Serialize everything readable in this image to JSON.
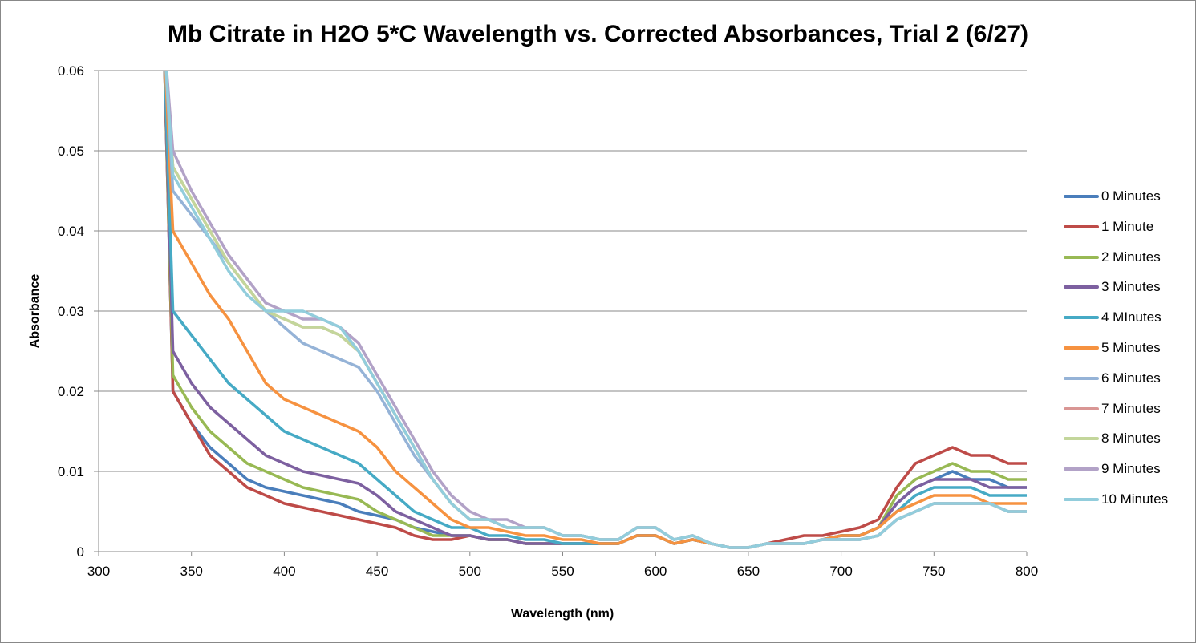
{
  "chart_data": {
    "type": "line",
    "title": "Mb Citrate in H2O 5*C Wavelength vs. Corrected Absorbances, Trial 2 (6/27)",
    "xlabel": "Wavelength (nm)",
    "ylabel": "Absorbance",
    "xlim": [
      300,
      800
    ],
    "ylim": [
      0,
      0.06
    ],
    "xticks": [
      "300",
      "350",
      "400",
      "450",
      "500",
      "550",
      "600",
      "650",
      "700",
      "750",
      "800"
    ],
    "yticks": [
      "0",
      "0.01",
      "0.02",
      "0.03",
      "0.04",
      "0.05",
      "0.06"
    ],
    "grid": "horizontal",
    "legend": "right",
    "x": [
      335,
      340,
      350,
      360,
      370,
      380,
      390,
      400,
      410,
      420,
      430,
      440,
      450,
      460,
      470,
      480,
      490,
      500,
      510,
      520,
      530,
      540,
      550,
      560,
      570,
      580,
      590,
      600,
      610,
      620,
      630,
      640,
      650,
      660,
      670,
      680,
      690,
      700,
      710,
      720,
      730,
      740,
      750,
      760,
      770,
      780,
      790,
      800
    ],
    "series": [
      {
        "name": "0 Minutes",
        "color": "#4A7EBB",
        "values": [
          0.065,
          0.02,
          0.016,
          0.013,
          0.011,
          0.009,
          0.008,
          0.0075,
          0.007,
          0.0065,
          0.006,
          0.005,
          0.0045,
          0.004,
          0.003,
          0.0025,
          0.002,
          0.002,
          0.0015,
          0.0015,
          0.001,
          0.001,
          0.001,
          0.001,
          0.001,
          0.001,
          0.002,
          0.002,
          0.001,
          0.0015,
          0.001,
          0.0005,
          0.0005,
          0.001,
          0.001,
          0.001,
          0.0015,
          0.002,
          0.002,
          0.003,
          0.006,
          0.008,
          0.009,
          0.01,
          0.009,
          0.009,
          0.008,
          0.008
        ]
      },
      {
        "name": "1 Minute",
        "color": "#BE4B48",
        "values": [
          0.065,
          0.02,
          0.016,
          0.012,
          0.01,
          0.008,
          0.007,
          0.006,
          0.0055,
          0.005,
          0.0045,
          0.004,
          0.0035,
          0.003,
          0.002,
          0.0015,
          0.0015,
          0.002,
          0.0015,
          0.0015,
          0.001,
          0.001,
          0.001,
          0.001,
          0.001,
          0.001,
          0.002,
          0.002,
          0.001,
          0.0015,
          0.001,
          0.0005,
          0.0005,
          0.001,
          0.0015,
          0.002,
          0.002,
          0.0025,
          0.003,
          0.004,
          0.008,
          0.011,
          0.012,
          0.013,
          0.012,
          0.012,
          0.011,
          0.011
        ]
      },
      {
        "name": "2 Minutes",
        "color": "#98B954",
        "values": [
          0.065,
          0.022,
          0.018,
          0.015,
          0.013,
          0.011,
          0.01,
          0.009,
          0.008,
          0.0075,
          0.007,
          0.0065,
          0.005,
          0.004,
          0.003,
          0.002,
          0.002,
          0.002,
          0.0015,
          0.0015,
          0.001,
          0.001,
          0.001,
          0.001,
          0.001,
          0.001,
          0.002,
          0.002,
          0.001,
          0.0015,
          0.001,
          0.0005,
          0.0005,
          0.001,
          0.001,
          0.001,
          0.0015,
          0.002,
          0.002,
          0.003,
          0.007,
          0.009,
          0.01,
          0.011,
          0.01,
          0.01,
          0.009,
          0.009
        ]
      },
      {
        "name": "3 Minutes",
        "color": "#7D60A0",
        "values": [
          0.065,
          0.025,
          0.021,
          0.018,
          0.016,
          0.014,
          0.012,
          0.011,
          0.01,
          0.0095,
          0.009,
          0.0085,
          0.007,
          0.005,
          0.004,
          0.003,
          0.002,
          0.002,
          0.0015,
          0.0015,
          0.001,
          0.001,
          0.001,
          0.001,
          0.001,
          0.001,
          0.002,
          0.002,
          0.001,
          0.0015,
          0.001,
          0.0005,
          0.0005,
          0.001,
          0.001,
          0.001,
          0.0015,
          0.002,
          0.002,
          0.003,
          0.006,
          0.008,
          0.009,
          0.009,
          0.009,
          0.008,
          0.008,
          0.008
        ]
      },
      {
        "name": "4 MInutes",
        "color": "#46AAC5",
        "values": [
          0.065,
          0.03,
          0.027,
          0.024,
          0.021,
          0.019,
          0.017,
          0.015,
          0.014,
          0.013,
          0.012,
          0.011,
          0.009,
          0.007,
          0.005,
          0.004,
          0.003,
          0.003,
          0.002,
          0.002,
          0.0015,
          0.0015,
          0.001,
          0.001,
          0.001,
          0.001,
          0.002,
          0.002,
          0.001,
          0.0015,
          0.001,
          0.0005,
          0.0005,
          0.001,
          0.001,
          0.001,
          0.0015,
          0.002,
          0.002,
          0.003,
          0.005,
          0.007,
          0.008,
          0.008,
          0.008,
          0.007,
          0.007,
          0.007
        ]
      },
      {
        "name": "5 Minutes",
        "color": "#F69240",
        "values": [
          0.065,
          0.04,
          0.036,
          0.032,
          0.029,
          0.025,
          0.021,
          0.019,
          0.018,
          0.017,
          0.016,
          0.015,
          0.013,
          0.01,
          0.008,
          0.006,
          0.004,
          0.003,
          0.003,
          0.0025,
          0.002,
          0.002,
          0.0015,
          0.0015,
          0.001,
          0.001,
          0.002,
          0.002,
          0.001,
          0.0015,
          0.001,
          0.0005,
          0.0005,
          0.001,
          0.001,
          0.001,
          0.0015,
          0.002,
          0.002,
          0.003,
          0.005,
          0.006,
          0.007,
          0.007,
          0.007,
          0.006,
          0.006,
          0.006
        ]
      },
      {
        "name": "6 Minutes",
        "color": "#95B3D7",
        "values": [
          0.065,
          0.045,
          0.042,
          0.039,
          0.036,
          0.033,
          0.03,
          0.028,
          0.026,
          0.025,
          0.024,
          0.023,
          0.02,
          0.016,
          0.012,
          0.009,
          0.006,
          0.004,
          0.004,
          0.003,
          0.003,
          0.003,
          0.002,
          0.002,
          0.0015,
          0.0015,
          0.003,
          0.003,
          0.0015,
          0.002,
          0.001,
          0.0005,
          0.0005,
          0.001,
          0.001,
          0.001,
          0.0015,
          0.0015,
          0.0015,
          0.002,
          0.004,
          0.005,
          0.006,
          0.006,
          0.006,
          0.006,
          0.005,
          0.005
        ]
      },
      {
        "name": "7 Minutes",
        "color": "#D99694",
        "values": [
          0.065,
          0.048,
          0.044,
          0.04,
          0.036,
          0.033,
          0.03,
          0.029,
          0.028,
          0.028,
          0.027,
          0.025,
          0.021,
          0.017,
          0.013,
          0.009,
          0.006,
          0.004,
          0.004,
          0.003,
          0.003,
          0.003,
          0.002,
          0.002,
          0.0015,
          0.0015,
          0.003,
          0.003,
          0.0015,
          0.002,
          0.001,
          0.0005,
          0.0005,
          0.001,
          0.001,
          0.001,
          0.0015,
          0.0015,
          0.0015,
          0.002,
          0.004,
          0.005,
          0.006,
          0.006,
          0.006,
          0.006,
          0.005,
          0.005
        ]
      },
      {
        "name": "8 Minutes",
        "color": "#C3D69B",
        "values": [
          0.065,
          0.048,
          0.044,
          0.04,
          0.036,
          0.033,
          0.03,
          0.029,
          0.028,
          0.028,
          0.027,
          0.025,
          0.021,
          0.017,
          0.013,
          0.009,
          0.006,
          0.004,
          0.004,
          0.003,
          0.003,
          0.003,
          0.002,
          0.002,
          0.0015,
          0.0015,
          0.003,
          0.003,
          0.0015,
          0.002,
          0.001,
          0.0005,
          0.0005,
          0.001,
          0.001,
          0.001,
          0.0015,
          0.0015,
          0.0015,
          0.002,
          0.004,
          0.005,
          0.006,
          0.006,
          0.006,
          0.006,
          0.005,
          0.005
        ]
      },
      {
        "name": "9 Minutes",
        "color": "#B2A2C7",
        "values": [
          0.065,
          0.05,
          0.045,
          0.041,
          0.037,
          0.034,
          0.031,
          0.03,
          0.029,
          0.029,
          0.028,
          0.026,
          0.022,
          0.018,
          0.014,
          0.01,
          0.007,
          0.005,
          0.004,
          0.004,
          0.003,
          0.003,
          0.002,
          0.002,
          0.0015,
          0.0015,
          0.003,
          0.003,
          0.0015,
          0.002,
          0.001,
          0.0005,
          0.0005,
          0.001,
          0.001,
          0.001,
          0.0015,
          0.0015,
          0.0015,
          0.002,
          0.004,
          0.005,
          0.006,
          0.006,
          0.006,
          0.006,
          0.005,
          0.005
        ]
      },
      {
        "name": "10 Minutes",
        "color": "#92CDDC",
        "values": [
          0.065,
          0.047,
          0.043,
          0.039,
          0.035,
          0.032,
          0.03,
          0.03,
          0.03,
          0.029,
          0.028,
          0.025,
          0.021,
          0.017,
          0.013,
          0.009,
          0.006,
          0.004,
          0.004,
          0.003,
          0.003,
          0.003,
          0.002,
          0.002,
          0.0015,
          0.0015,
          0.003,
          0.003,
          0.0015,
          0.002,
          0.001,
          0.0005,
          0.0005,
          0.001,
          0.001,
          0.001,
          0.0015,
          0.0015,
          0.0015,
          0.002,
          0.004,
          0.005,
          0.006,
          0.006,
          0.006,
          0.006,
          0.005,
          0.005
        ]
      }
    ]
  }
}
